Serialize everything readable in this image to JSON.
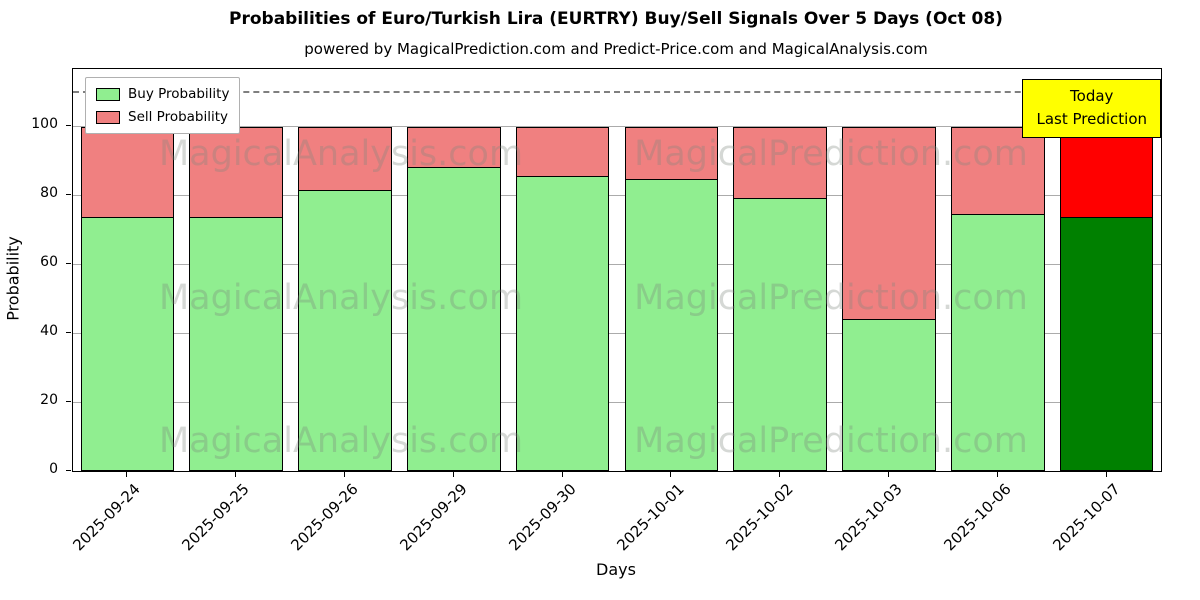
{
  "chart_data": {
    "type": "bar",
    "stacked": true,
    "title": "Probabilities of Euro/Turkish Lira (EURTRY) Buy/Sell Signals Over 5 Days (Oct 08)",
    "subtitle": "powered by MagicalPrediction.com and Predict-Price.com and MagicalAnalysis.com",
    "xlabel": "Days",
    "ylabel": "Probability",
    "ylim": [
      0,
      116.5
    ],
    "yticks": [
      0,
      20,
      40,
      60,
      80,
      100
    ],
    "dashed_line_y": 110,
    "grid": true,
    "legend_position": "upper left",
    "categories": [
      "2025-09-24",
      "2025-09-25",
      "2025-09-26",
      "2025-09-29",
      "2025-09-30",
      "2025-10-01",
      "2025-10-02",
      "2025-10-03",
      "2025-10-06",
      "2025-10-07"
    ],
    "series": [
      {
        "name": "Buy Probability",
        "values": [
          73.5,
          73.5,
          81.5,
          88,
          85.5,
          84.5,
          79,
          44,
          74.5,
          73.5
        ],
        "color": "#90EE90",
        "last_bar_color": "#008000"
      },
      {
        "name": "Sell Probability",
        "values": [
          26.5,
          26.5,
          18.5,
          12,
          14.5,
          15.5,
          21,
          56,
          25.5,
          26.5
        ],
        "color": "#F08080",
        "last_bar_color": "#FF0000"
      }
    ],
    "bar_edge_color": "#000000",
    "annotation": {
      "lines": [
        "Today",
        "Last Prediction"
      ],
      "bg": "#FFFF00",
      "border": "#000000"
    },
    "watermarks": [
      "MagicalAnalysis.com",
      "MagicalPrediction.com"
    ]
  }
}
